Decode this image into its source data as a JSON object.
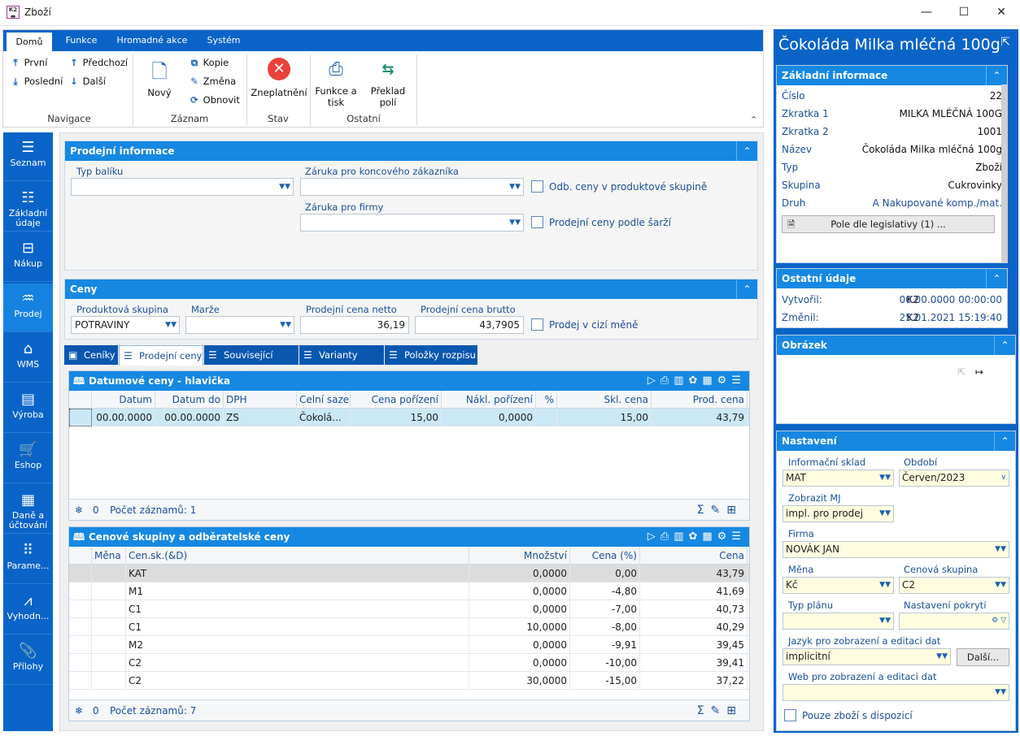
{
  "window": {
    "title": "Zboží"
  },
  "ribbon": {
    "tabs": [
      "Domů",
      "Funkce",
      "Hromadné akce",
      "Systém"
    ],
    "nav": {
      "first": "První",
      "last": "Poslední",
      "prev": "Předchozí",
      "next": "Další",
      "group": "Navigace"
    },
    "record": {
      "new": "Nový",
      "copy": "Kopie",
      "change": "Změna",
      "refresh": "Obnovit",
      "group": "Záznam"
    },
    "state": {
      "invalidate": "Zneplatnění",
      "group": "Stav"
    },
    "other": {
      "print": "Funkce a tisk",
      "translate": "Překlad polí",
      "group": "Ostatní"
    }
  },
  "leftnav": [
    {
      "label": "Seznam",
      "icon": "list-icon"
    },
    {
      "label": "Základní údaje",
      "icon": "details-icon"
    },
    {
      "label": "Nákup",
      "icon": "purchase-icon"
    },
    {
      "label": "Prodej",
      "icon": "sales-icon"
    },
    {
      "label": "WMS",
      "icon": "warehouse-icon"
    },
    {
      "label": "Výroba",
      "icon": "production-icon"
    },
    {
      "label": "Eshop",
      "icon": "cart-icon"
    },
    {
      "label": "Daně a účtování",
      "icon": "tax-icon"
    },
    {
      "label": "Parame...",
      "icon": "parameters-icon"
    },
    {
      "label": "Vyhodn...",
      "icon": "analytics-icon"
    },
    {
      "label": "Přílohy",
      "icon": "attachment-icon"
    }
  ],
  "sales_info": {
    "title": "Prodejní informace",
    "package_type_label": "Typ balíku",
    "package_type_value": "",
    "warranty_customer_label": "Záruka pro koncového zákazníka",
    "warranty_customer_value": "",
    "warranty_company_label": "Záruka pro firmy",
    "warranty_company_value": "",
    "diff_prices_label": "Odb. ceny v produktové skupině",
    "batch_prices_label": "Prodejní ceny podle šarží"
  },
  "prices": {
    "title": "Ceny",
    "product_group_label": "Produktová skupina",
    "product_group_value": "POTRAVINY",
    "margin_label": "Marže",
    "margin_value": "",
    "net_label": "Prodejní cena netto",
    "net_value": "36,19",
    "gross_label": "Prodejní cena brutto",
    "gross_value": "43,7905",
    "foreign_label": "Prodej v cizí měně"
  },
  "subtabs": [
    "Ceníky",
    "Prodejní ceny",
    "Související zboží",
    "Varianty zboží",
    "Položky rozpisu"
  ],
  "dated_prices": {
    "title": "Datumové ceny - hlavička",
    "columns": [
      "Datum",
      "Datum do",
      "DPH",
      "Celní sazeb",
      "Cena pořízení",
      "Nákl. pořízení",
      "%",
      "Skl. cena",
      "Prod. cena"
    ],
    "rows": [
      [
        "00.00.0000",
        "00.00.0000",
        "ZS",
        "Čokolá...",
        "15,00",
        "0,0000",
        "",
        "15,00",
        "43,79"
      ]
    ],
    "footer_count": "0",
    "footer_records": "Počet záznamů: 1"
  },
  "price_groups": {
    "title": "Cenové skupiny a odběratelské ceny",
    "columns": [
      "Měna",
      "Cen.sk.(&D)",
      "Množství",
      "Cena (%)",
      "Cena"
    ],
    "rows": [
      [
        "",
        "KAT",
        "0,0000",
        "0,00",
        "43,79"
      ],
      [
        "",
        "M1",
        "0,0000",
        "-4,80",
        "41,69"
      ],
      [
        "",
        "C1",
        "0,0000",
        "-7,00",
        "40,73"
      ],
      [
        "",
        "C1",
        "10,0000",
        "-8,00",
        "40,29"
      ],
      [
        "",
        "M2",
        "0,0000",
        "-9,91",
        "39,45"
      ],
      [
        "",
        "C2",
        "0,0000",
        "-10,00",
        "39,41"
      ],
      [
        "",
        "C2",
        "30,0000",
        "-15,00",
        "37,22"
      ]
    ],
    "footer_count": "0",
    "footer_records": "Počet záznamů: 7"
  },
  "right": {
    "product_title": "Čokoláda Milka mléčná 100g",
    "basic": {
      "title": "Základní informace",
      "rows": [
        {
          "k": "Číslo",
          "v": "22"
        },
        {
          "k": "Zkratka 1",
          "v": "MILKA MLÉČNÁ 100G"
        },
        {
          "k": "Zkratka 2",
          "v": "1001"
        },
        {
          "k": "Název",
          "v": "Čokoláda Milka mléčná 100g"
        },
        {
          "k": "Typ",
          "v": "Zboží"
        },
        {
          "k": "Skupina",
          "v": "Cukrovinky"
        },
        {
          "k": "Druh",
          "v": "A Nakupované komp./mat."
        }
      ],
      "legislation_button": "Pole dle legislativy (1) ..."
    },
    "other": {
      "title": "Ostatní údaje",
      "created_label": "Vytvořil:",
      "created_user": "K2",
      "created_value": "00.00.0000 00:00:00",
      "changed_label": "Změnil:",
      "changed_user": "K2",
      "changed_value": "25.01.2021 15:19:40"
    },
    "image": {
      "title": "Obrázek"
    },
    "settings": {
      "title": "Nastavení",
      "stock_label": "Informační sklad",
      "stock_value": "MAT",
      "period_label": "Období",
      "period_value": "Červen/2023",
      "unit_label": "Zobrazit MJ",
      "unit_value": "impl. pro prodej",
      "company_label": "Firma",
      "company_value": "NOVÁK JAN",
      "currency_label": "Měna",
      "currency_value": "Kč",
      "price_group_label": "Cenová skupina",
      "price_group_value": "C2",
      "plan_label": "Typ plánu",
      "plan_value": "",
      "coverage_label": "Nastavení pokrytí",
      "coverage_value": "",
      "language_label": "Jazyk pro zobrazení a editaci dat",
      "language_value": "implicitní",
      "more_button": "Další...",
      "web_label": "Web pro zobrazení a editaci dat",
      "web_value": "",
      "available_label": "Pouze zboží s dispozicí"
    }
  }
}
